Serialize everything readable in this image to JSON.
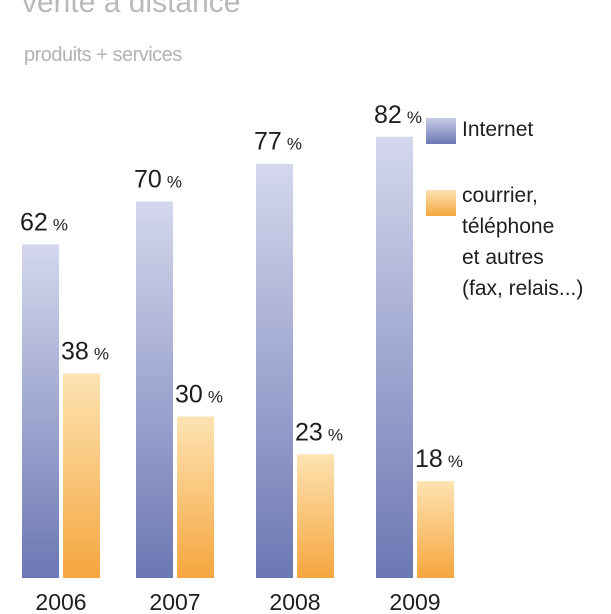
{
  "chart_data": {
    "type": "bar",
    "title": "vente à distance",
    "subtitle": "produits + services",
    "categories": [
      "2006",
      "2007",
      "2008",
      "2009"
    ],
    "series": [
      {
        "name": "Internet",
        "values": [
          62,
          70,
          77,
          82
        ],
        "labels": [
          "62",
          "70",
          "77",
          "82"
        ],
        "color_top": "#d4d7ec",
        "color_bottom": "#6c78b4"
      },
      {
        "name": "courrier,\ntéléphone\net autres\n(fax, relais...)",
        "values": [
          38,
          30,
          23,
          18
        ],
        "labels": [
          "38",
          "30",
          "23",
          "18"
        ],
        "color_top": "#fde3b2",
        "color_bottom": "#f5a63f"
      }
    ],
    "unit": "%",
    "ylim": [
      0,
      100
    ],
    "legend_position": "right",
    "grid": false
  }
}
